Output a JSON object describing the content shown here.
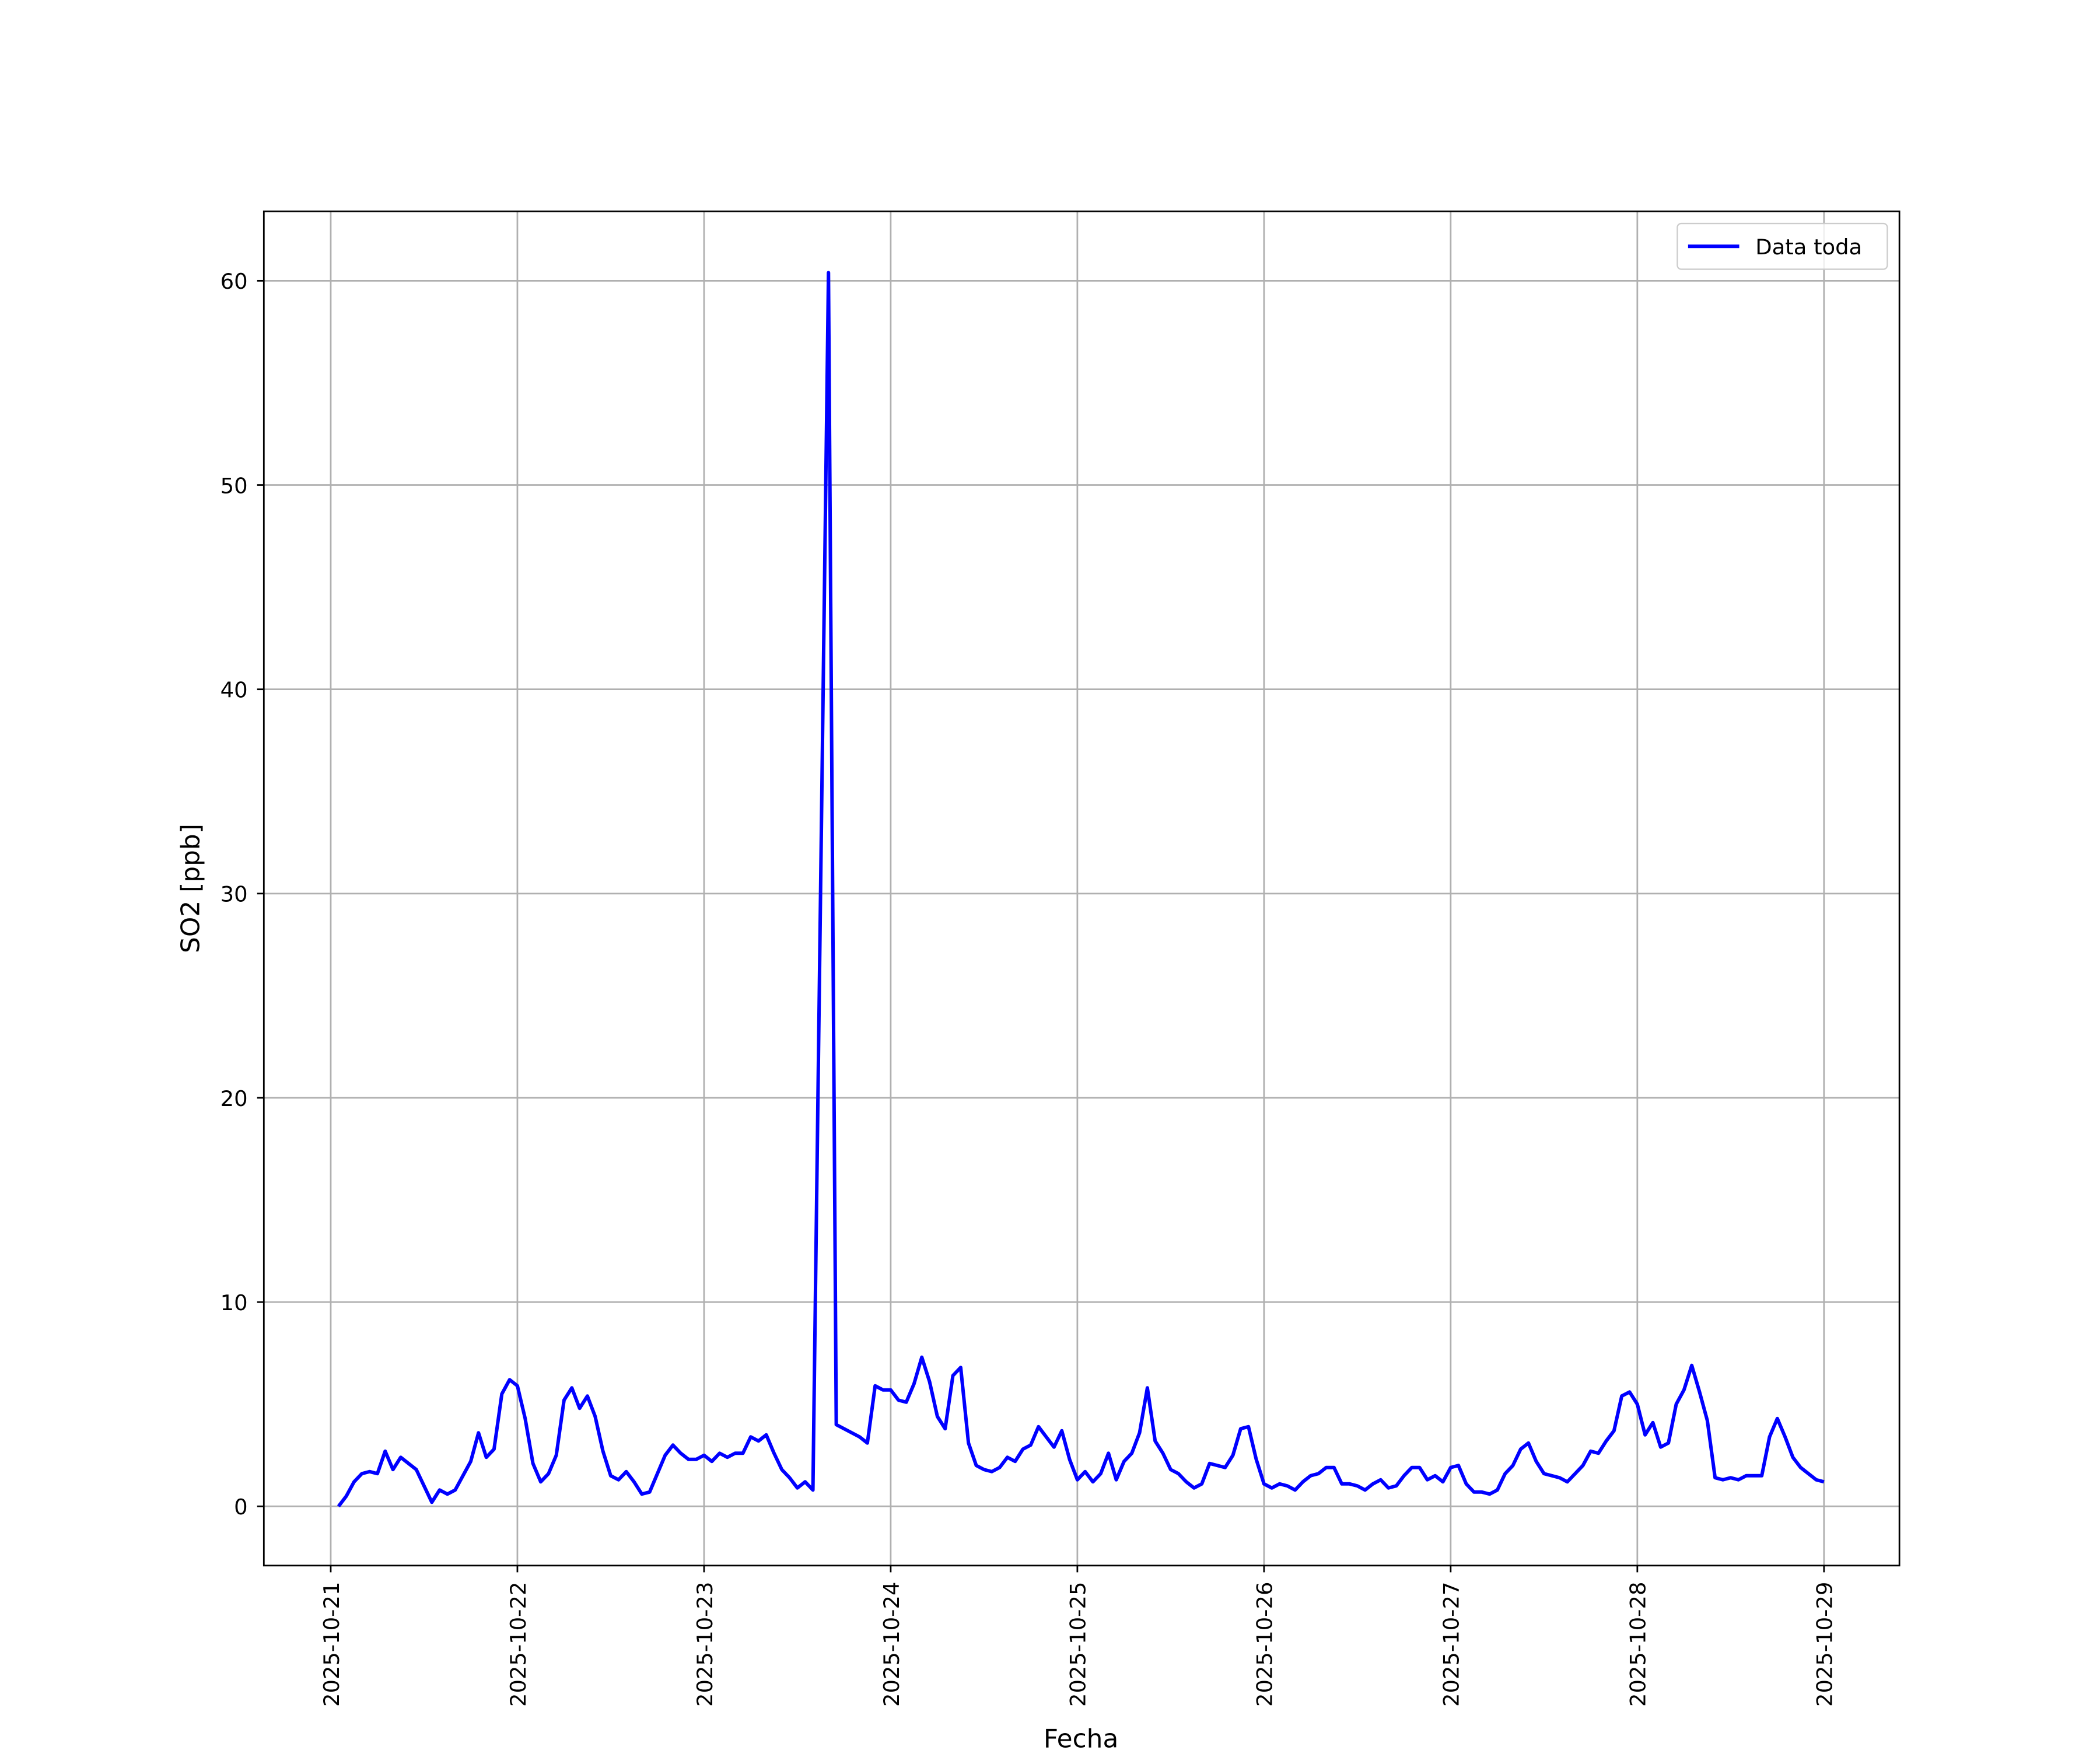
{
  "chart_data": {
    "type": "line",
    "x_label": "Fecha",
    "y_label": "SO2 [ppb]",
    "x": [
      1,
      2,
      3,
      4,
      5,
      6,
      7,
      8,
      9,
      10,
      11,
      12,
      13,
      14,
      15,
      16,
      17,
      18,
      19,
      20,
      21,
      22,
      23,
      24,
      25,
      26,
      27,
      28,
      29,
      30,
      31,
      32,
      33,
      34,
      35,
      36,
      37,
      38,
      39,
      40,
      41,
      42,
      43,
      44,
      45,
      46,
      47,
      48,
      49,
      50,
      51,
      52,
      53,
      54,
      55,
      56,
      57,
      58,
      59,
      60,
      61,
      62,
      64,
      65,
      66,
      67,
      68,
      69,
      70,
      71,
      72,
      73,
      74,
      75,
      76,
      77,
      78,
      79,
      80,
      81,
      82,
      83,
      84,
      85,
      86,
      87,
      88,
      89,
      90,
      91,
      92,
      93,
      94,
      95,
      96,
      97,
      98,
      99,
      100,
      101,
      102,
      103,
      104,
      105,
      106,
      107,
      108,
      109,
      110,
      111,
      112,
      113,
      114,
      115,
      116,
      117,
      118,
      119,
      120,
      121,
      122,
      123,
      124,
      125,
      126,
      127,
      128,
      129,
      130,
      131,
      132,
      133,
      134,
      135,
      136,
      137,
      138,
      139,
      140,
      141,
      142,
      143,
      144,
      145,
      146,
      147,
      148,
      149,
      150,
      151,
      152,
      153,
      154,
      155,
      156,
      157,
      158,
      159,
      160,
      161,
      162,
      163,
      164,
      165,
      166,
      167,
      168,
      169,
      170,
      171,
      172,
      173,
      174,
      175,
      176,
      177,
      178,
      179,
      180,
      181,
      182,
      183,
      184,
      185,
      186,
      187,
      188,
      189,
      190,
      191,
      192
    ],
    "series": [
      {
        "name": "Data toda",
        "color": "#0000ff",
        "values": [
          0,
          0.5,
          1.2,
          1.6,
          1.7,
          1.6,
          2.7,
          1.8,
          2.4,
          2.1,
          1.8,
          1.0,
          0.2,
          0.8,
          0.6,
          0.8,
          1.5,
          2.2,
          3.6,
          2.4,
          2.8,
          5.5,
          6.2,
          5.9,
          4.3,
          2.1,
          1.2,
          1.6,
          2.5,
          5.2,
          5.8,
          4.8,
          5.4,
          4.4,
          2.7,
          1.5,
          1.3,
          1.7,
          1.2,
          0.6,
          0.7,
          1.6,
          2.5,
          3.0,
          2.6,
          2.3,
          2.3,
          2.5,
          2.2,
          2.6,
          2.4,
          2.6,
          2.6,
          3.4,
          3.2,
          3.5,
          2.6,
          1.8,
          1.4,
          0.9,
          1.2,
          0.8,
          60.4,
          4.0,
          3.8,
          3.6,
          3.4,
          3.1,
          5.9,
          5.7,
          5.7,
          5.2,
          5.1,
          6.0,
          7.3,
          6.1,
          4.4,
          3.8,
          6.4,
          6.8,
          3.1,
          2.0,
          1.8,
          1.7,
          1.9,
          2.4,
          2.2,
          2.8,
          3.0,
          3.9,
          3.4,
          2.9,
          3.7,
          2.3,
          1.3,
          1.7,
          1.2,
          1.6,
          2.6,
          1.3,
          2.2,
          2.6,
          3.6,
          5.8,
          3.2,
          2.6,
          1.8,
          1.6,
          1.2,
          0.9,
          1.1,
          2.1,
          2.0,
          1.9,
          2.5,
          3.8,
          3.9,
          2.3,
          1.1,
          0.9,
          1.1,
          1.0,
          0.8,
          1.2,
          1.5,
          1.6,
          1.9,
          1.9,
          1.1,
          1.1,
          1.0,
          0.8,
          1.1,
          1.3,
          0.9,
          1.0,
          1.5,
          1.9,
          1.9,
          1.3,
          1.5,
          1.2,
          1.9,
          2.0,
          1.1,
          0.7,
          0.7,
          0.6,
          0.8,
          1.6,
          2.0,
          2.8,
          3.1,
          2.2,
          1.6,
          1.5,
          1.4,
          1.2,
          1.6,
          2.0,
          2.7,
          2.6,
          3.2,
          3.7,
          5.4,
          5.6,
          5.0,
          3.5,
          4.1,
          2.9,
          3.1,
          5.0,
          5.7,
          6.9,
          5.6,
          4.2,
          1.4,
          1.3,
          1.4,
          1.3,
          1.5,
          1.5,
          1.5,
          3.4,
          4.3,
          3.4,
          2.4,
          1.9,
          1.6,
          1.3,
          1.2
        ]
      }
    ],
    "xlim": [
      -8.6,
      201.7
    ],
    "ylim": [
      -2.9,
      63.4
    ],
    "xticks": [
      {
        "value": 0,
        "label": "2025-10-21"
      },
      {
        "value": 24,
        "label": "2025-10-22"
      },
      {
        "value": 48,
        "label": "2025-10-23"
      },
      {
        "value": 72,
        "label": "2025-10-24"
      },
      {
        "value": 96,
        "label": "2025-10-25"
      },
      {
        "value": 120,
        "label": "2025-10-26"
      },
      {
        "value": 144,
        "label": "2025-10-27"
      },
      {
        "value": 168,
        "label": "2025-10-28"
      },
      {
        "value": 192,
        "label": "2025-10-29"
      }
    ],
    "yticks": [
      0,
      10,
      20,
      30,
      40,
      50,
      60
    ],
    "grid": true,
    "legend": "upper-right"
  }
}
